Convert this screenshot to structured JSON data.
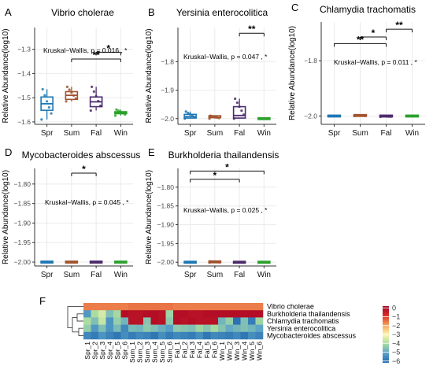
{
  "panels": [
    {
      "letter": "A",
      "title": "Vibrio cholerae",
      "ylabel": "Relative Abundance(log10)",
      "kruskal": "Kruskal−Wallis, p = 0.016 , *",
      "ylim": [
        -1.61,
        -1.21
      ],
      "yticks": [
        -1.3,
        -1.4,
        -1.5,
        -1.6
      ],
      "ytick_labels": [
        "−1.3",
        "−1.4",
        "−1.5",
        "−1.6"
      ],
      "groups": [
        "Spr",
        "Sum",
        "Fal",
        "Win"
      ],
      "boxes": [
        {
          "q1": -1.552,
          "med": -1.525,
          "q3": -1.497,
          "lo": -1.59,
          "hi": -1.465
        },
        {
          "q1": -1.507,
          "med": -1.49,
          "q3": -1.475,
          "lo": -1.515,
          "hi": -1.455
        },
        {
          "q1": -1.537,
          "med": -1.517,
          "q3": -1.497,
          "lo": -1.553,
          "hi": -1.455
        },
        {
          "q1": -1.566,
          "med": -1.562,
          "q3": -1.558,
          "lo": -1.574,
          "hi": -1.549
        }
      ],
      "sig": [
        {
          "from": 2,
          "to": 3,
          "label": "*",
          "y": -1.312
        },
        {
          "from": 1,
          "to": 3,
          "label": "**",
          "y": -1.34
        }
      ]
    },
    {
      "letter": "B",
      "title": "Yersinia enterocolitica",
      "ylabel": "Relative Abundance(log10)",
      "kruskal": "Kruskal−Wallis, p = 0.047 , *",
      "ylim": [
        -2.02,
        -1.68
      ],
      "yticks": [
        -1.8,
        -1.9,
        -2.0
      ],
      "ytick_labels": [
        "−1.8",
        "−1.9",
        "−2.0"
      ],
      "groups": [
        "Spr",
        "Sum",
        "Fal",
        "Win"
      ],
      "boxes": [
        {
          "q1": -1.998,
          "med": -1.993,
          "q3": -1.985,
          "lo": -2.0,
          "hi": -1.975
        },
        {
          "q1": -1.998,
          "med": -1.996,
          "q3": -1.993,
          "lo": -2.0,
          "hi": -1.99
        },
        {
          "q1": -1.998,
          "med": -1.989,
          "q3": -1.958,
          "lo": -2.0,
          "hi": -1.93
        },
        {
          "q1": -2.0,
          "med": -2.0,
          "q3": -2.0,
          "lo": -2.0,
          "hi": -2.0
        }
      ],
      "sig": [
        {
          "from": 2,
          "to": 3,
          "label": "**",
          "y": -1.7
        }
      ]
    },
    {
      "letter": "C",
      "title": "Chlamydia trachomatis",
      "ylabel": "Relative Abundance(log10)",
      "kruskal": "Kruskal−Wallis, p = 0.011 , *",
      "ylim": [
        -2.03,
        -1.66
      ],
      "yticks": [
        -1.8,
        -2.0
      ],
      "ytick_labels": [
        "−1.8",
        "−2.0"
      ],
      "groups": [
        "Spr",
        "Sum",
        "Fal",
        "Win"
      ],
      "boxes": [
        {
          "q1": -2.0,
          "med": -2.0,
          "q3": -2.0,
          "lo": -2.0,
          "hi": -2.0
        },
        {
          "q1": -2.0,
          "med": -2.0,
          "q3": -1.998,
          "lo": -2.0,
          "hi": -1.997
        },
        {
          "q1": -2.002,
          "med": -2.001,
          "q3": -2.0,
          "lo": -2.003,
          "hi": -2.0
        },
        {
          "q1": -2.0,
          "med": -2.0,
          "q3": -2.0,
          "lo": -2.0,
          "hi": -2.0
        }
      ],
      "sig": [
        {
          "from": 2,
          "to": 3,
          "label": "**",
          "y": -1.686
        },
        {
          "from": 1,
          "to": 2,
          "label": "*",
          "y": -1.714
        },
        {
          "from": 0,
          "to": 2,
          "label": "**",
          "y": -1.738
        }
      ]
    },
    {
      "letter": "D",
      "title": "Mycobacteroides abscessus",
      "ylabel": "Relative Abundance(log10)",
      "kruskal": "Kruskal−Wallis, p = 0.045 , *",
      "ylim": [
        -2.01,
        -1.76
      ],
      "yticks": [
        -1.8,
        -1.85,
        -1.9,
        -1.95,
        -2.0
      ],
      "ytick_labels": [
        "−1.80",
        "−1.85",
        "−1.90",
        "−1.95",
        "−2.00"
      ],
      "groups": [
        "Spr",
        "Sum",
        "Fal",
        "Win"
      ],
      "boxes": [
        {
          "q1": -2.0,
          "med": -2.0,
          "q3": -2.0,
          "lo": -2.0,
          "hi": -2.0
        },
        {
          "q1": -2.0,
          "med": -2.0,
          "q3": -2.0,
          "lo": -2.0,
          "hi": -2.0
        },
        {
          "q1": -2.001,
          "med": -2.0,
          "q3": -2.0,
          "lo": -2.001,
          "hi": -2.0
        },
        {
          "q1": -2.001,
          "med": -2.0,
          "q3": -2.0,
          "lo": -2.001,
          "hi": -2.0
        }
      ],
      "sig": [
        {
          "from": 1,
          "to": 2,
          "label": "*",
          "y": -1.772
        }
      ]
    },
    {
      "letter": "E",
      "title": "Burkholderia thailandensis",
      "ylabel": "Relative Abundance(log10)",
      "kruskal": "Kruskal−Wallis, p = 0.025 , *",
      "ylim": [
        -2.01,
        -1.75
      ],
      "yticks": [
        -1.8,
        -1.85,
        -1.9,
        -1.95,
        -2.0
      ],
      "ytick_labels": [
        "−1.80",
        "−1.85",
        "−1.90",
        "−1.95",
        "−2.00"
      ],
      "groups": [
        "Spr",
        "Sum",
        "Fal",
        "Win"
      ],
      "boxes": [
        {
          "q1": -2.0,
          "med": -2.0,
          "q3": -2.0,
          "lo": -2.0,
          "hi": -2.0
        },
        {
          "q1": -2.001,
          "med": -2.0,
          "q3": -1.999,
          "lo": -2.001,
          "hi": -1.998
        },
        {
          "q1": -2.001,
          "med": -2.0,
          "q3": -2.0,
          "lo": -2.001,
          "hi": -2.0
        },
        {
          "q1": -2.001,
          "med": -2.0,
          "q3": -2.0,
          "lo": -2.001,
          "hi": -2.0
        }
      ],
      "sig": [
        {
          "from": 0,
          "to": 3,
          "label": "*",
          "y": -1.757
        },
        {
          "from": 0,
          "to": 2,
          "label": "*",
          "y": -1.779
        }
      ]
    }
  ],
  "heatmap": {
    "letter": "F",
    "rows": [
      "Vibrio cholerae",
      "Burkholderia thailandensis",
      "Chlamydia trachomatis",
      "Yersinia enterocolitica",
      "Mycobacteroides abscessus"
    ],
    "columns": [
      "Spr_1",
      "Spr_2",
      "Spr_3",
      "Spr_4",
      "Spr_5",
      "Spr_6",
      "Sum_1",
      "Sum_2",
      "Sum_3",
      "Sum_4",
      "Sum_5",
      "Sum_6",
      "Fal_1",
      "Fal_2",
      "Fal_3",
      "Fal_4",
      "Fal_5",
      "Fal_6",
      "Win_1",
      "Win_2",
      "Win_3",
      "Win_4",
      "Win_5",
      "Win_6"
    ],
    "values": [
      [
        -1.6,
        -1.6,
        -1.6,
        -1.6,
        -1.6,
        -1.6,
        -1.5,
        -1.5,
        -1.5,
        -1.5,
        -1.5,
        -1.5,
        -1.6,
        -1.6,
        -1.6,
        -1.6,
        -1.6,
        -1.6,
        -1.6,
        -1.6,
        -1.6,
        -1.6,
        -1.6,
        -1.6
      ],
      [
        -5.3,
        -4.0,
        -3.5,
        -4.6,
        -4.1,
        -0.1,
        -0.2,
        -0.2,
        -0.1,
        -0.1,
        -0.2,
        -4.2,
        -0.1,
        -0.1,
        -0.2,
        -0.2,
        -0.1,
        -0.1,
        -0.1,
        -0.1,
        -0.1,
        -0.1,
        -0.1,
        -0.1
      ],
      [
        -4.0,
        -4.6,
        -3.7,
        -5.4,
        -4.3,
        -4.8,
        -0.2,
        -0.2,
        -4.5,
        -0.1,
        -0.2,
        -4.4,
        -0.1,
        -0.2,
        -0.1,
        -0.2,
        -0.2,
        -0.2,
        -4.8,
        -4.3,
        -6.0,
        -4.6,
        -5.8,
        -4.2
      ],
      [
        -4.3,
        -5.3,
        -4.6,
        -5.4,
        -4.7,
        -5.6,
        -4.7,
        -4.8,
        -4.4,
        -4.6,
        -4.9,
        -5.2,
        -4.4,
        -4.5,
        -4.6,
        -4.2,
        -4.5,
        -4.1,
        -4.5,
        -5.0,
        -4.8,
        -4.6,
        -4.8,
        -5.1
      ],
      [
        -5.6,
        -5.8,
        -5.4,
        -5.7,
        -5.9,
        -5.5,
        -5.8,
        -5.6,
        -5.7,
        -5.9,
        -5.5,
        -5.8,
        -5.6,
        -5.7,
        -5.8,
        -5.5,
        -5.9,
        -5.6,
        -5.7,
        -5.8,
        -5.6,
        -5.9,
        -5.5,
        -5.7
      ]
    ],
    "legend_ticks": [
      0,
      -1,
      -2,
      -3,
      -4,
      -5,
      -6
    ],
    "legend_tick_labels": [
      "0",
      "−1",
      "−2",
      "−3",
      "−4",
      "−5",
      "−6"
    ],
    "range": [
      -6.2,
      0.2
    ]
  },
  "colors": {
    "Spr": "#1f77b4",
    "Sum": "#a0522d",
    "Fal": "#4b2a6b",
    "Win": "#2ca02c",
    "grid": "#ebebeb",
    "heat_scale": [
      "#2166ac",
      "#5aa3c8",
      "#a6dba0",
      "#fdf7b0",
      "#f6a05a",
      "#d73027",
      "#a50026"
    ]
  },
  "chart_data": [
    {
      "type": "box",
      "title": "Vibrio cholerae",
      "ylabel": "Relative Abundance(log10)",
      "categories": [
        "Spr",
        "Sum",
        "Fal",
        "Win"
      ],
      "median": [
        -1.525,
        -1.49,
        -1.517,
        -1.562
      ],
      "ylim": [
        -1.61,
        -1.21
      ]
    },
    {
      "type": "box",
      "title": "Yersinia enterocolitica",
      "ylabel": "Relative Abundance(log10)",
      "categories": [
        "Spr",
        "Sum",
        "Fal",
        "Win"
      ],
      "median": [
        -1.993,
        -1.996,
        -1.989,
        -2.0
      ],
      "ylim": [
        -2.02,
        -1.68
      ]
    },
    {
      "type": "box",
      "title": "Chlamydia trachomatis",
      "ylabel": "Relative Abundance(log10)",
      "categories": [
        "Spr",
        "Sum",
        "Fal",
        "Win"
      ],
      "median": [
        -2.0,
        -2.0,
        -2.001,
        -2.0
      ],
      "ylim": [
        -2.03,
        -1.66
      ]
    },
    {
      "type": "box",
      "title": "Mycobacteroides abscessus",
      "ylabel": "Relative Abundance(log10)",
      "categories": [
        "Spr",
        "Sum",
        "Fal",
        "Win"
      ],
      "median": [
        -2.0,
        -2.0,
        -2.0,
        -2.0
      ],
      "ylim": [
        -2.01,
        -1.76
      ]
    },
    {
      "type": "box",
      "title": "Burkholderia thailandensis",
      "ylabel": "Relative Abundance(log10)",
      "categories": [
        "Spr",
        "Sum",
        "Fal",
        "Win"
      ],
      "median": [
        -2.0,
        -2.0,
        -2.0,
        -2.0
      ],
      "ylim": [
        -2.01,
        -1.75
      ]
    },
    {
      "type": "heatmap",
      "rows": [
        "Vibrio cholerae",
        "Burkholderia thailandensis",
        "Chlamydia trachomatis",
        "Yersinia enterocolitica",
        "Mycobacteroides abscessus"
      ],
      "columns": [
        "Spr_1",
        "Spr_2",
        "Spr_3",
        "Spr_4",
        "Spr_5",
        "Spr_6",
        "Sum_1",
        "Sum_2",
        "Sum_3",
        "Sum_4",
        "Sum_5",
        "Sum_6",
        "Fal_1",
        "Fal_2",
        "Fal_3",
        "Fal_4",
        "Fal_5",
        "Fal_6",
        "Win_1",
        "Win_2",
        "Win_3",
        "Win_4",
        "Win_5",
        "Win_6"
      ],
      "legend_range": [
        -6,
        0
      ]
    }
  ]
}
